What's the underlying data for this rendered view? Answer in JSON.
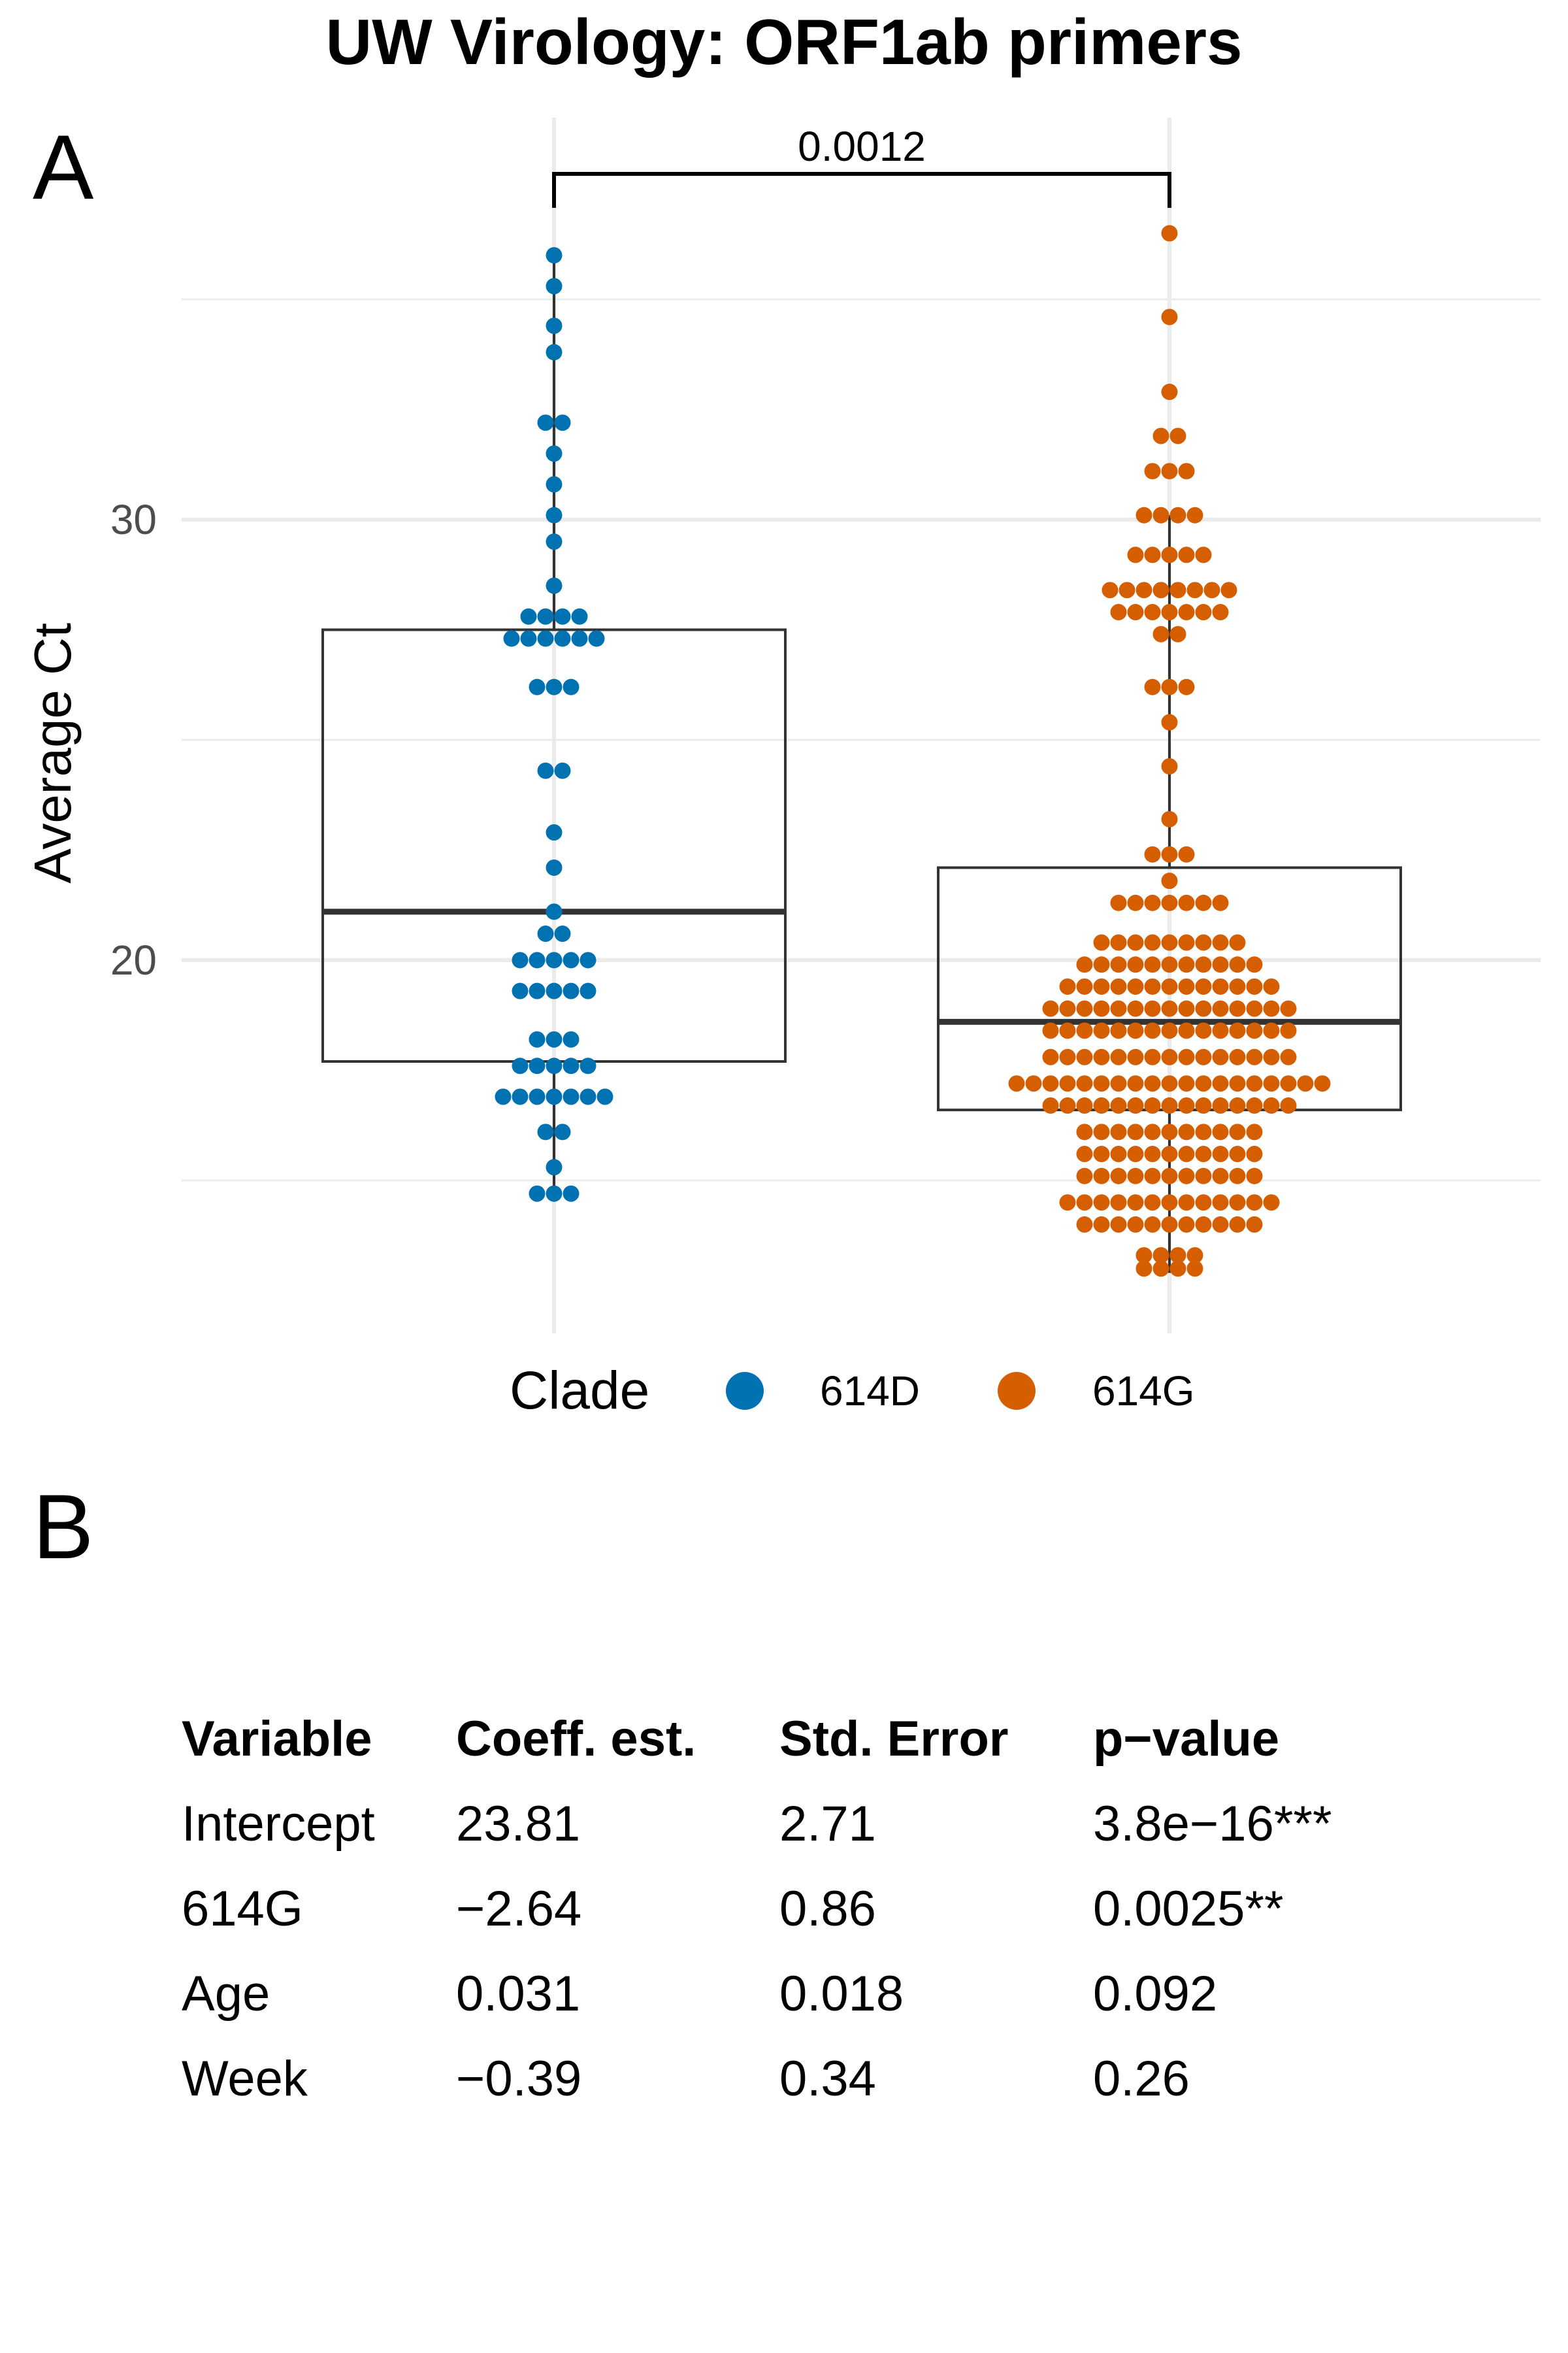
{
  "chart_data": {
    "type": "box+beeswarm",
    "title": "UW Virology: ORF1ab primers",
    "panel_label": "A",
    "ylabel": "Average Ct",
    "y_ticks": [
      20,
      30
    ],
    "ylim": [
      12,
      37.5
    ],
    "categories": [
      "614D",
      "614G"
    ],
    "legend": {
      "title": "Clade",
      "position": "bottom"
    },
    "colors": {
      "614D": "#0072B2",
      "614G": "#D55E00"
    },
    "boxes": [
      {
        "category": "614D",
        "q1": 17.7,
        "median": 21.1,
        "q3": 27.5,
        "whisker_low": 14.7,
        "whisker_high": 36.0
      },
      {
        "category": "614G",
        "q1": 16.6,
        "median": 18.6,
        "q3": 22.1,
        "whisker_low": 12.9,
        "whisker_high": 30.1
      }
    ],
    "series": [
      {
        "name": "614D",
        "rows": [
          [
            36.0,
            1
          ],
          [
            35.3,
            1
          ],
          [
            34.4,
            1
          ],
          [
            33.8,
            1
          ],
          [
            32.2,
            2
          ],
          [
            31.5,
            1
          ],
          [
            30.8,
            1
          ],
          [
            30.1,
            1
          ],
          [
            29.5,
            1
          ],
          [
            28.5,
            1
          ],
          [
            27.8,
            4
          ],
          [
            27.3,
            6
          ],
          [
            26.2,
            3
          ],
          [
            24.3,
            2
          ],
          [
            22.9,
            1
          ],
          [
            22.1,
            1
          ],
          [
            21.1,
            1
          ],
          [
            20.6,
            2
          ],
          [
            20.0,
            5
          ],
          [
            19.3,
            5
          ],
          [
            18.2,
            3
          ],
          [
            17.6,
            5
          ],
          [
            16.9,
            7
          ],
          [
            16.1,
            2
          ],
          [
            15.3,
            1
          ],
          [
            14.7,
            3
          ]
        ]
      },
      {
        "name": "614G",
        "rows": [
          [
            36.5,
            1
          ],
          [
            34.6,
            1
          ],
          [
            32.9,
            1
          ],
          [
            31.9,
            2
          ],
          [
            31.1,
            3
          ],
          [
            30.1,
            4
          ],
          [
            29.2,
            5
          ],
          [
            28.4,
            8
          ],
          [
            27.9,
            7
          ],
          [
            27.4,
            2
          ],
          [
            26.2,
            3
          ],
          [
            25.4,
            1
          ],
          [
            24.4,
            1
          ],
          [
            23.2,
            1
          ],
          [
            22.4,
            3
          ],
          [
            21.8,
            1
          ],
          [
            21.3,
            7
          ],
          [
            20.4,
            9
          ],
          [
            19.9,
            11
          ],
          [
            19.4,
            13
          ],
          [
            18.9,
            15
          ],
          [
            18.4,
            15
          ],
          [
            17.8,
            15
          ],
          [
            17.2,
            19
          ],
          [
            16.7,
            15
          ],
          [
            16.1,
            11
          ],
          [
            15.6,
            11
          ],
          [
            15.1,
            11
          ],
          [
            14.5,
            13
          ],
          [
            14.0,
            11
          ],
          [
            13.3,
            4
          ],
          [
            13.0,
            4
          ]
        ]
      }
    ],
    "comparison": {
      "pair": [
        "614D",
        "614G"
      ],
      "label": "0.0012"
    }
  },
  "table": {
    "panel_label": "B",
    "headers": [
      "Variable",
      "Coeff. est.",
      "Std. Error",
      "p−value"
    ],
    "rows": [
      [
        "Intercept",
        "23.81",
        "2.71",
        "3.8e−16***"
      ],
      [
        "614G",
        "−2.64",
        "0.86",
        "0.0025**"
      ],
      [
        "Age",
        "0.031",
        "0.018",
        "0.092"
      ],
      [
        "Week",
        "−0.39",
        "0.34",
        "0.26"
      ]
    ]
  }
}
